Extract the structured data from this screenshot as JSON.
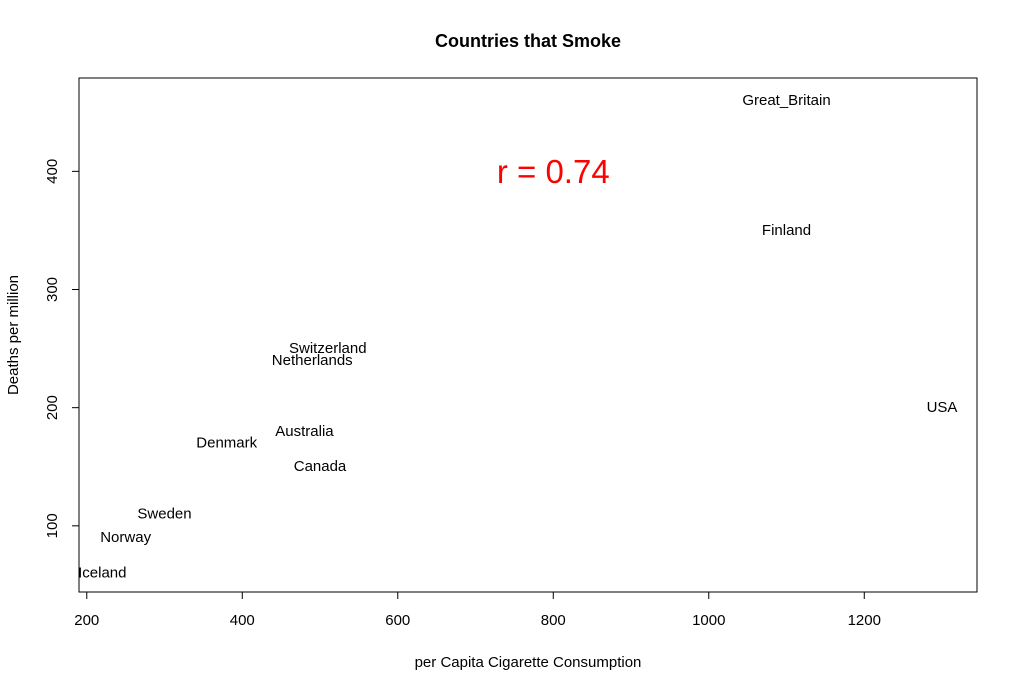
{
  "chart_data": {
    "type": "scatter",
    "title": "Countries that Smoke",
    "xlabel": "per Capita Cigarette Consumption",
    "ylabel": "Deaths per million",
    "xlim": [
      190,
      1345
    ],
    "ylim": [
      44,
      479
    ],
    "xticks": [
      200,
      400,
      600,
      800,
      1000,
      1200
    ],
    "yticks": [
      100,
      200,
      300,
      400
    ],
    "grid": false,
    "legend": "none",
    "points": [
      {
        "label": "Great_Britain",
        "x": 1100,
        "y": 460
      },
      {
        "label": "Finland",
        "x": 1100,
        "y": 350
      },
      {
        "label": "Switzerland",
        "x": 510,
        "y": 250
      },
      {
        "label": "Netherlands",
        "x": 490,
        "y": 240
      },
      {
        "label": "USA",
        "x": 1300,
        "y": 200
      },
      {
        "label": "Australia",
        "x": 480,
        "y": 180
      },
      {
        "label": "Denmark",
        "x": 380,
        "y": 170
      },
      {
        "label": "Canada",
        "x": 500,
        "y": 150
      },
      {
        "label": "Sweden",
        "x": 300,
        "y": 110
      },
      {
        "label": "Norway",
        "x": 250,
        "y": 90
      },
      {
        "label": "Iceland",
        "x": 220,
        "y": 60
      }
    ],
    "annotation": {
      "text": "r = 0.74",
      "x": 800,
      "y": 400,
      "color": "#ff0000"
    }
  }
}
